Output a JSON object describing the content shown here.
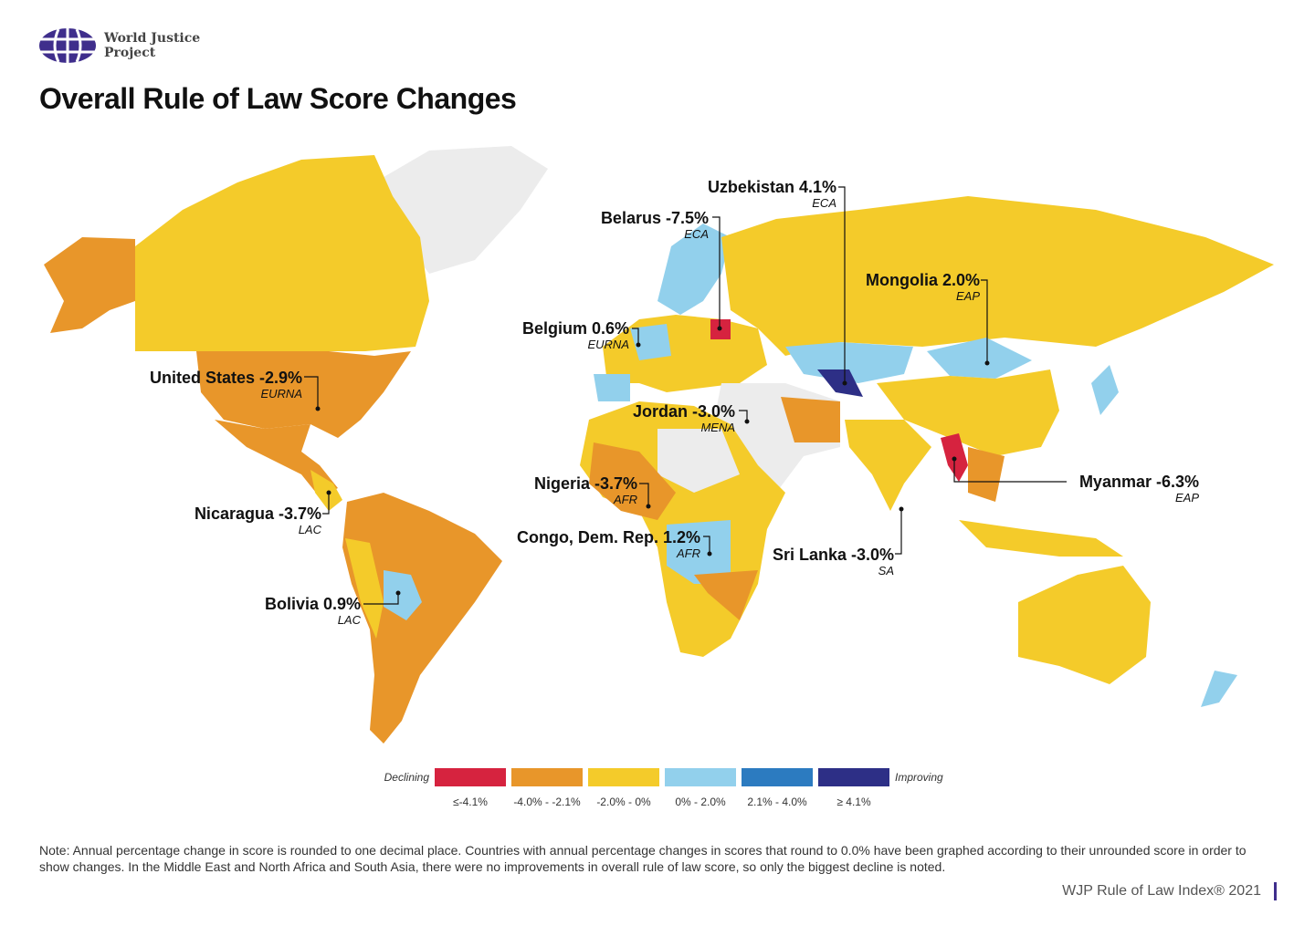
{
  "brand": {
    "name_line1": "World Justice",
    "name_line2": "Project",
    "logo_color": "#3f2e8c"
  },
  "title": "Overall Rule of Law Score Changes",
  "colors": {
    "le_-4.1": "#d6233f",
    "-4.0_-2.1": "#e8962a",
    "-2.0_0": "#f4cb2a",
    "0_2.0": "#92d0ec",
    "2.1_4.0": "#2c7bc0",
    "ge_4.1": "#2d2f86",
    "no_data": "#ececec",
    "ocean": "#ffffff"
  },
  "callouts": [
    {
      "name": "Uzbekistan 4.1%",
      "region": "ECA"
    },
    {
      "name": "Belarus -7.5%",
      "region": "ECA"
    },
    {
      "name": "Mongolia 2.0%",
      "region": "EAP"
    },
    {
      "name": "Belgium 0.6%",
      "region": "EURNA"
    },
    {
      "name": "United States -2.9%",
      "region": "EURNA"
    },
    {
      "name": "Jordan -3.0%",
      "region": "MENA"
    },
    {
      "name": "Myanmar -6.3%",
      "region": "EAP"
    },
    {
      "name": "Nigeria -3.7%",
      "region": "AFR"
    },
    {
      "name": "Nicaragua -3.7%",
      "region": "LAC"
    },
    {
      "name": "Congo, Dem. Rep. 1.2%",
      "region": "AFR"
    },
    {
      "name": "Sri Lanka -3.0%",
      "region": "SA"
    },
    {
      "name": "Bolivia 0.9%",
      "region": "LAC"
    }
  ],
  "legend": {
    "left_label": "Declining",
    "right_label": "Improving",
    "items": [
      {
        "label": "≤-4.1%",
        "color": "#d6233f"
      },
      {
        "label": "-4.0% -  -2.1%",
        "color": "#e8962a"
      },
      {
        "label": "-2.0% -  0%",
        "color": "#f4cb2a"
      },
      {
        "label": "0% - 2.0%",
        "color": "#92d0ec"
      },
      {
        "label": "2.1% - 4.0%",
        "color": "#2c7bc0"
      },
      {
        "label": "≥ 4.1%",
        "color": "#2d2f86"
      }
    ]
  },
  "note": "Note: Annual percentage change in score is rounded to one decimal place. Countries with annual percentage changes in scores that round to 0.0% have been graphed according to their unrounded score in order to show changes. In the Middle East and North Africa and South Asia, there were no improvements in overall rule of law score, so only the biggest decline is noted.",
  "footer": "WJP Rule of Law Index® 2021"
}
